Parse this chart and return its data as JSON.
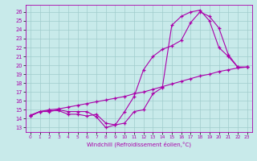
{
  "xlabel": "Windchill (Refroidissement éolien,°C)",
  "bg_color": "#c8eaea",
  "grid_color": "#a0cccc",
  "line_color": "#aa00aa",
  "x_ticks": [
    0,
    1,
    2,
    3,
    4,
    5,
    6,
    7,
    8,
    9,
    10,
    11,
    12,
    13,
    14,
    15,
    16,
    17,
    18,
    19,
    20,
    21,
    22,
    23
  ],
  "y_ticks": [
    13,
    14,
    15,
    16,
    17,
    18,
    19,
    20,
    21,
    22,
    23,
    24,
    25,
    26
  ],
  "xlim": [
    -0.5,
    23.5
  ],
  "ylim": [
    12.5,
    26.8
  ],
  "line1_x": [
    0,
    1,
    2,
    3,
    4,
    5,
    6,
    7,
    8,
    9,
    10,
    11,
    12,
    13,
    14,
    15,
    16,
    17,
    18,
    19,
    20,
    21,
    22,
    23
  ],
  "line1_y": [
    14.3,
    14.8,
    14.8,
    15.0,
    14.8,
    14.8,
    14.8,
    14.2,
    13.0,
    13.3,
    14.8,
    16.5,
    19.5,
    21.0,
    21.8,
    22.2,
    22.8,
    24.8,
    26.0,
    25.5,
    24.2,
    21.2,
    19.8,
    19.8
  ],
  "line2_x": [
    0,
    1,
    2,
    3,
    4,
    5,
    6,
    7,
    8,
    9,
    10,
    11,
    12,
    13,
    14,
    15,
    16,
    17,
    18,
    19,
    20,
    21,
    22,
    23
  ],
  "line2_y": [
    14.3,
    14.8,
    14.9,
    14.9,
    14.5,
    14.5,
    14.3,
    14.5,
    13.5,
    13.3,
    13.5,
    14.8,
    15.0,
    16.8,
    17.5,
    24.5,
    25.5,
    26.0,
    26.2,
    25.0,
    22.0,
    21.0,
    19.8,
    19.8
  ],
  "line3_x": [
    0,
    1,
    2,
    3,
    4,
    5,
    6,
    7,
    8,
    9,
    10,
    11,
    12,
    13,
    14,
    15,
    16,
    17,
    18,
    19,
    20,
    21,
    22,
    23
  ],
  "line3_y": [
    14.4,
    14.8,
    15.0,
    15.1,
    15.3,
    15.5,
    15.7,
    15.9,
    16.1,
    16.3,
    16.5,
    16.8,
    17.0,
    17.3,
    17.6,
    17.9,
    18.2,
    18.5,
    18.8,
    19.0,
    19.3,
    19.5,
    19.7,
    19.8
  ]
}
